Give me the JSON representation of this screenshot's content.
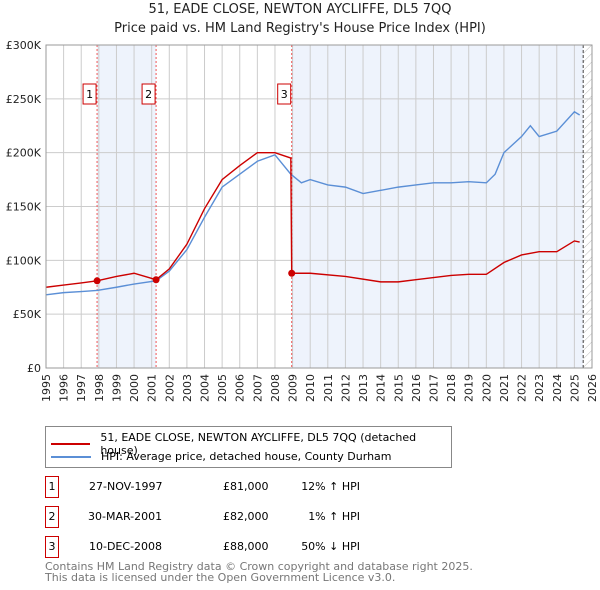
{
  "chart_data": {
    "type": "line",
    "title": "51, EADE CLOSE, NEWTON AYCLIFFE, DL5 7QQ",
    "subtitle": "Price paid vs. HM Land Registry's House Price Index (HPI)",
    "ylim": [
      0,
      300000
    ],
    "xlim": [
      1995,
      2026
    ],
    "yticks": [
      "£0",
      "£50K",
      "£100K",
      "£150K",
      "£200K",
      "£250K",
      "£300K"
    ],
    "xticks": [
      "1995",
      "1996",
      "1997",
      "1998",
      "1999",
      "2000",
      "2001",
      "2002",
      "2003",
      "2004",
      "2005",
      "2006",
      "2007",
      "2008",
      "2009",
      "2010",
      "2011",
      "2012",
      "2013",
      "2014",
      "2015",
      "2016",
      "2017",
      "2018",
      "2019",
      "2020",
      "2021",
      "2022",
      "2023",
      "2024",
      "2025",
      "2026"
    ],
    "series": [
      {
        "name": "51, EADE CLOSE, NEWTON AYCLIFFE, DL5 7QQ (detached house)",
        "color": "#cc0000",
        "x": [
          1995,
          1996,
          1997,
          1997.9,
          1999,
          2000,
          2001.25,
          2002,
          2003,
          2004,
          2005,
          2006,
          2007,
          2008,
          2008.9,
          2008.95,
          2010,
          2012,
          2014,
          2015,
          2016,
          2017,
          2018,
          2019,
          2020,
          2021,
          2022,
          2023,
          2024,
          2025,
          2025.3
        ],
        "y": [
          75000,
          77000,
          79000,
          81000,
          85000,
          88000,
          82000,
          92000,
          115000,
          148000,
          175000,
          188000,
          200000,
          200000,
          195000,
          88000,
          88000,
          85000,
          80000,
          80000,
          82000,
          84000,
          86000,
          87000,
          87000,
          98000,
          105000,
          108000,
          108000,
          118000,
          117000
        ]
      },
      {
        "name": "HPI: Average price, detached house, County Durham",
        "color": "#5b8fd6",
        "x": [
          1995,
          1996,
          1997,
          1997.9,
          1999,
          2000,
          2001.25,
          2002,
          2003,
          2004,
          2005,
          2006,
          2007,
          2008,
          2008.9,
          2009.5,
          2010,
          2011,
          2012,
          2013,
          2014,
          2015,
          2016,
          2017,
          2018,
          2019,
          2020,
          2020.5,
          2021,
          2022,
          2022.5,
          2023,
          2024,
          2025,
          2025.3
        ],
        "y": [
          68000,
          70000,
          71000,
          72000,
          75000,
          78000,
          81000,
          90000,
          110000,
          140000,
          168000,
          180000,
          192000,
          198000,
          180000,
          172000,
          175000,
          170000,
          168000,
          162000,
          165000,
          168000,
          170000,
          172000,
          172000,
          173000,
          172000,
          180000,
          200000,
          215000,
          225000,
          215000,
          220000,
          238000,
          235000
        ]
      }
    ],
    "sales": [
      {
        "label": "1",
        "x": 1997.9,
        "y": 81000,
        "date": "27-NOV-1997",
        "price": "£81,000",
        "hpi": "12% ↑ HPI"
      },
      {
        "label": "2",
        "x": 2001.25,
        "y": 82000,
        "date": "30-MAR-2001",
        "price": "£82,000",
        "hpi": "1% ↑ HPI"
      },
      {
        "label": "3",
        "x": 2008.95,
        "y": 88000,
        "date": "10-DEC-2008",
        "price": "£88,000",
        "hpi": "50% ↓ HPI"
      }
    ],
    "footer": [
      "Contains HM Land Registry data © Crown copyright and database right 2025.",
      "This data is licensed under the Open Government Licence v3.0."
    ]
  }
}
